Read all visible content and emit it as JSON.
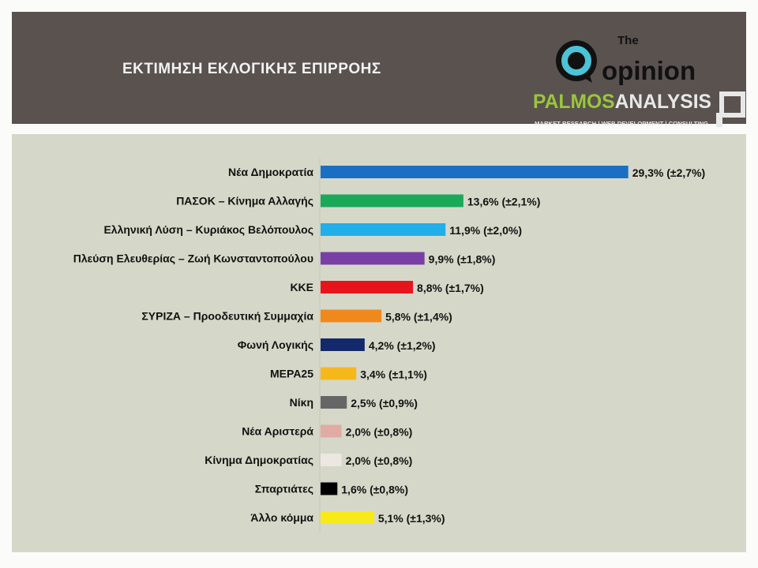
{
  "header": {
    "title": "ΕΚΤΙΜΗΣΗ ΕΚΛΟΓΙΚΗΣ ΕΠΙΡΡΟΗΣ",
    "logo_top": "The opinion",
    "logo_bottom": "PALMOSANALYSIS",
    "logo_tagline": "MARKET RESEARCH | WEB DEVELOPMENT | CONSULTING"
  },
  "chart_data": {
    "type": "bar",
    "orientation": "horizontal",
    "title": "ΕΚΤΙΜΗΣΗ ΕΚΛΟΓΙΚΗΣ ΕΠΙΡΡΟΗΣ",
    "categories": [
      "Νέα Δημοκρατία",
      "ΠΑΣΟΚ – Κίνημα Αλλαγής",
      "Ελληνική Λύση – Κυριάκος Βελόπουλος",
      "Πλεύση Ελευθερίας – Ζωή Κωνσταντοπούλου",
      "ΚΚΕ",
      "ΣΥΡΙΖΑ – Προοδευτική Συμμαχία",
      "Φωνή Λογικής",
      "ΜΕΡΑ25",
      "Νίκη",
      "Νέα Αριστερά",
      "Κίνημα Δημοκρατίας",
      "Σπαρτιάτες",
      "Άλλο κόμμα"
    ],
    "values": [
      29.3,
      13.6,
      11.9,
      9.9,
      8.8,
      5.8,
      4.2,
      3.4,
      2.5,
      2.0,
      2.0,
      1.6,
      5.1
    ],
    "margins": [
      2.7,
      2.1,
      2.0,
      1.8,
      1.7,
      1.4,
      1.2,
      1.1,
      0.9,
      0.8,
      0.8,
      0.8,
      1.3
    ],
    "data_labels": [
      "29,3% (±2,7%)",
      "13,6% (±2,1%)",
      "11,9% (±2,0%)",
      "9,9% (±1,8%)",
      "8,8% (±1,7%)",
      "5,8% (±1,4%)",
      "4,2% (±1,2%)",
      "3,4% (±1,1%)",
      "2,5% (±0,9%)",
      "2,0% (±0,8%)",
      "2,0% (±0,8%)",
      "1,6% (±0,8%)",
      "5,1% (±1,3%)"
    ],
    "colors": [
      "#1a6fc4",
      "#1aa958",
      "#22aee8",
      "#7a3fa6",
      "#e8141c",
      "#f0891c",
      "#13296b",
      "#f5b81c",
      "#666666",
      "#e0aba2",
      "#ede7e1",
      "#000000",
      "#f8ea1a"
    ],
    "xlabel": "",
    "ylabel": "",
    "grid": false,
    "legend": "none"
  }
}
